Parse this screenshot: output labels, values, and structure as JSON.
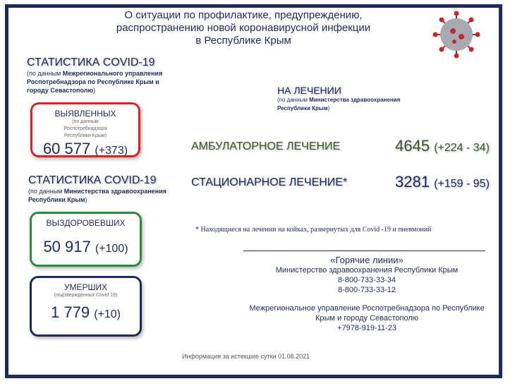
{
  "title": [
    "О ситуации по профилактике, предупреждению,",
    "распространению новой коронавирусной инфекции",
    "в Республике Крым"
  ],
  "left": {
    "stat1": {
      "heading": "СТАТИСТИКА COVID-19",
      "source_prefix": "(по данным ",
      "source_bold": "Межрегионального управления Роспотребнадзора по Республике Крым и городу Севастополю",
      "source_suffix": ")"
    },
    "detected": {
      "label": "ВЫЯВЛЕННЫХ",
      "note": "(по данным Роспотребнадзора Республики Крым)",
      "value": "60 577",
      "delta": "(+373)",
      "color": "#e02020"
    },
    "stat2": {
      "heading": "СТАТИСТИКА COVID-19",
      "source_prefix": "(по данным ",
      "source_bold": "Министерства здравоохранения Республики Крым",
      "source_suffix": ")"
    },
    "recovered": {
      "label": "ВЫЗДОРОВЕВШИХ",
      "value": "50 917",
      "delta": "(+100)",
      "color": "#2e8b3a"
    },
    "died": {
      "label": "УМЕРШИХ",
      "note": "(подтвержденных Covid 19)",
      "value": "1 779",
      "delta": "(+10)",
      "color": "#1e2a5a"
    }
  },
  "treatment": {
    "heading": "НА ЛЕЧЕНИИ",
    "source_prefix": "(по данным ",
    "source_bold": "Министерства здравоохранения Республики Крым",
    "source_suffix": ")",
    "ambulatory": {
      "label": "АМБУЛАТОРНОЕ ЛЕЧЕНИЕ",
      "value": "4645",
      "delta": "(+224 - 34)",
      "color": "#3b5a2b"
    },
    "hospital": {
      "label": "СТАЦИОНАРНОЕ ЛЕЧЕНИЕ*",
      "value": "3281",
      "delta": "(+159 - 95)",
      "color": "#1b2a5a"
    },
    "footnote": "* Находящиеся на лечении на койках, развернутых для Covid -19 и пневмоний"
  },
  "hotlines": {
    "heading": "«Горячие линии»",
    "ministry": "Министерство здравоохранения Республики Крым",
    "phone1": "8-800-733-33-34",
    "phone2": "8-800-733-33-12",
    "rpn1": "Межрегиональное управление Роспотребнадзора по Республике",
    "rpn2": "Крым и городу Севастополю",
    "phone3": "+7978-919-11-23"
  },
  "footer": "Информация за истекшие сутки 01.08.2021"
}
